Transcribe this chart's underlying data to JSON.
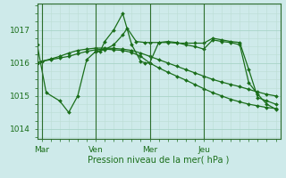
{
  "background_color": "#ceeaea",
  "grid_color_major": "#a8d4c8",
  "grid_color_minor": "#bcddd4",
  "line_color": "#1a6e1a",
  "title": "",
  "xlabel": "Pression niveau de la mer( hPa )",
  "ylim": [
    1013.7,
    1017.8
  ],
  "yticks": [
    1014,
    1015,
    1016,
    1017
  ],
  "xtick_labels": [
    "Mar",
    "Ven",
    "Mer",
    "Jeu"
  ],
  "xtick_positions": [
    12,
    36,
    60,
    84
  ],
  "vline_positions": [
    12,
    36,
    60,
    84
  ],
  "xlim": [
    10,
    118
  ],
  "series1_x": [
    10,
    12,
    16,
    20,
    24,
    28,
    32,
    36,
    40,
    44,
    48,
    52,
    56,
    60,
    64,
    68,
    72,
    76,
    80,
    84,
    88,
    92,
    96,
    100,
    104,
    108,
    112,
    116
  ],
  "series1": [
    1016.0,
    1016.05,
    1016.1,
    1016.15,
    1016.2,
    1016.28,
    1016.35,
    1016.4,
    1016.42,
    1016.4,
    1016.38,
    1016.32,
    1016.2,
    1016.0,
    1015.85,
    1015.72,
    1015.6,
    1015.48,
    1015.35,
    1015.22,
    1015.1,
    1015.0,
    1014.9,
    1014.82,
    1014.75,
    1014.7,
    1014.65,
    1014.62
  ],
  "series2_x": [
    10,
    12,
    16,
    20,
    24,
    28,
    32,
    36,
    40,
    44,
    48,
    52,
    56,
    60,
    64,
    68,
    72,
    76,
    80,
    84,
    88,
    92,
    96,
    100,
    104,
    108,
    112,
    116
  ],
  "series2": [
    1016.0,
    1016.05,
    1016.12,
    1016.2,
    1016.3,
    1016.38,
    1016.42,
    1016.45,
    1016.45,
    1016.44,
    1016.42,
    1016.38,
    1016.3,
    1016.2,
    1016.1,
    1016.0,
    1015.9,
    1015.8,
    1015.7,
    1015.6,
    1015.5,
    1015.42,
    1015.35,
    1015.28,
    1015.2,
    1015.12,
    1015.05,
    1015.0
  ],
  "series3_x": [
    10,
    14,
    20,
    24,
    28,
    32,
    36,
    38,
    40,
    44,
    48,
    52,
    56,
    58,
    60,
    64,
    68,
    72,
    76,
    80,
    84,
    88,
    92,
    96,
    100,
    104,
    108,
    112,
    116
  ],
  "series3": [
    1016.55,
    1015.1,
    1014.85,
    1014.5,
    1015.0,
    1016.1,
    1016.35,
    1016.35,
    1016.65,
    1017.0,
    1017.5,
    1016.55,
    1016.05,
    1016.0,
    1016.0,
    1016.62,
    1016.65,
    1016.62,
    1016.55,
    1016.5,
    1016.42,
    1016.7,
    1016.65,
    1016.62,
    1016.55,
    1015.4,
    1015.05,
    1014.75,
    1014.6
  ],
  "series4_x": [
    36,
    40,
    44,
    48,
    50,
    54,
    58,
    60,
    64,
    68,
    72,
    76,
    80,
    84,
    88,
    92,
    96,
    100,
    104,
    108,
    112,
    116
  ],
  "series4": [
    1016.35,
    1016.4,
    1016.55,
    1016.85,
    1017.05,
    1016.65,
    1016.62,
    1016.62,
    1016.62,
    1016.62,
    1016.6,
    1016.6,
    1016.6,
    1016.6,
    1016.75,
    1016.7,
    1016.65,
    1016.62,
    1015.8,
    1014.95,
    1014.85,
    1014.75
  ]
}
